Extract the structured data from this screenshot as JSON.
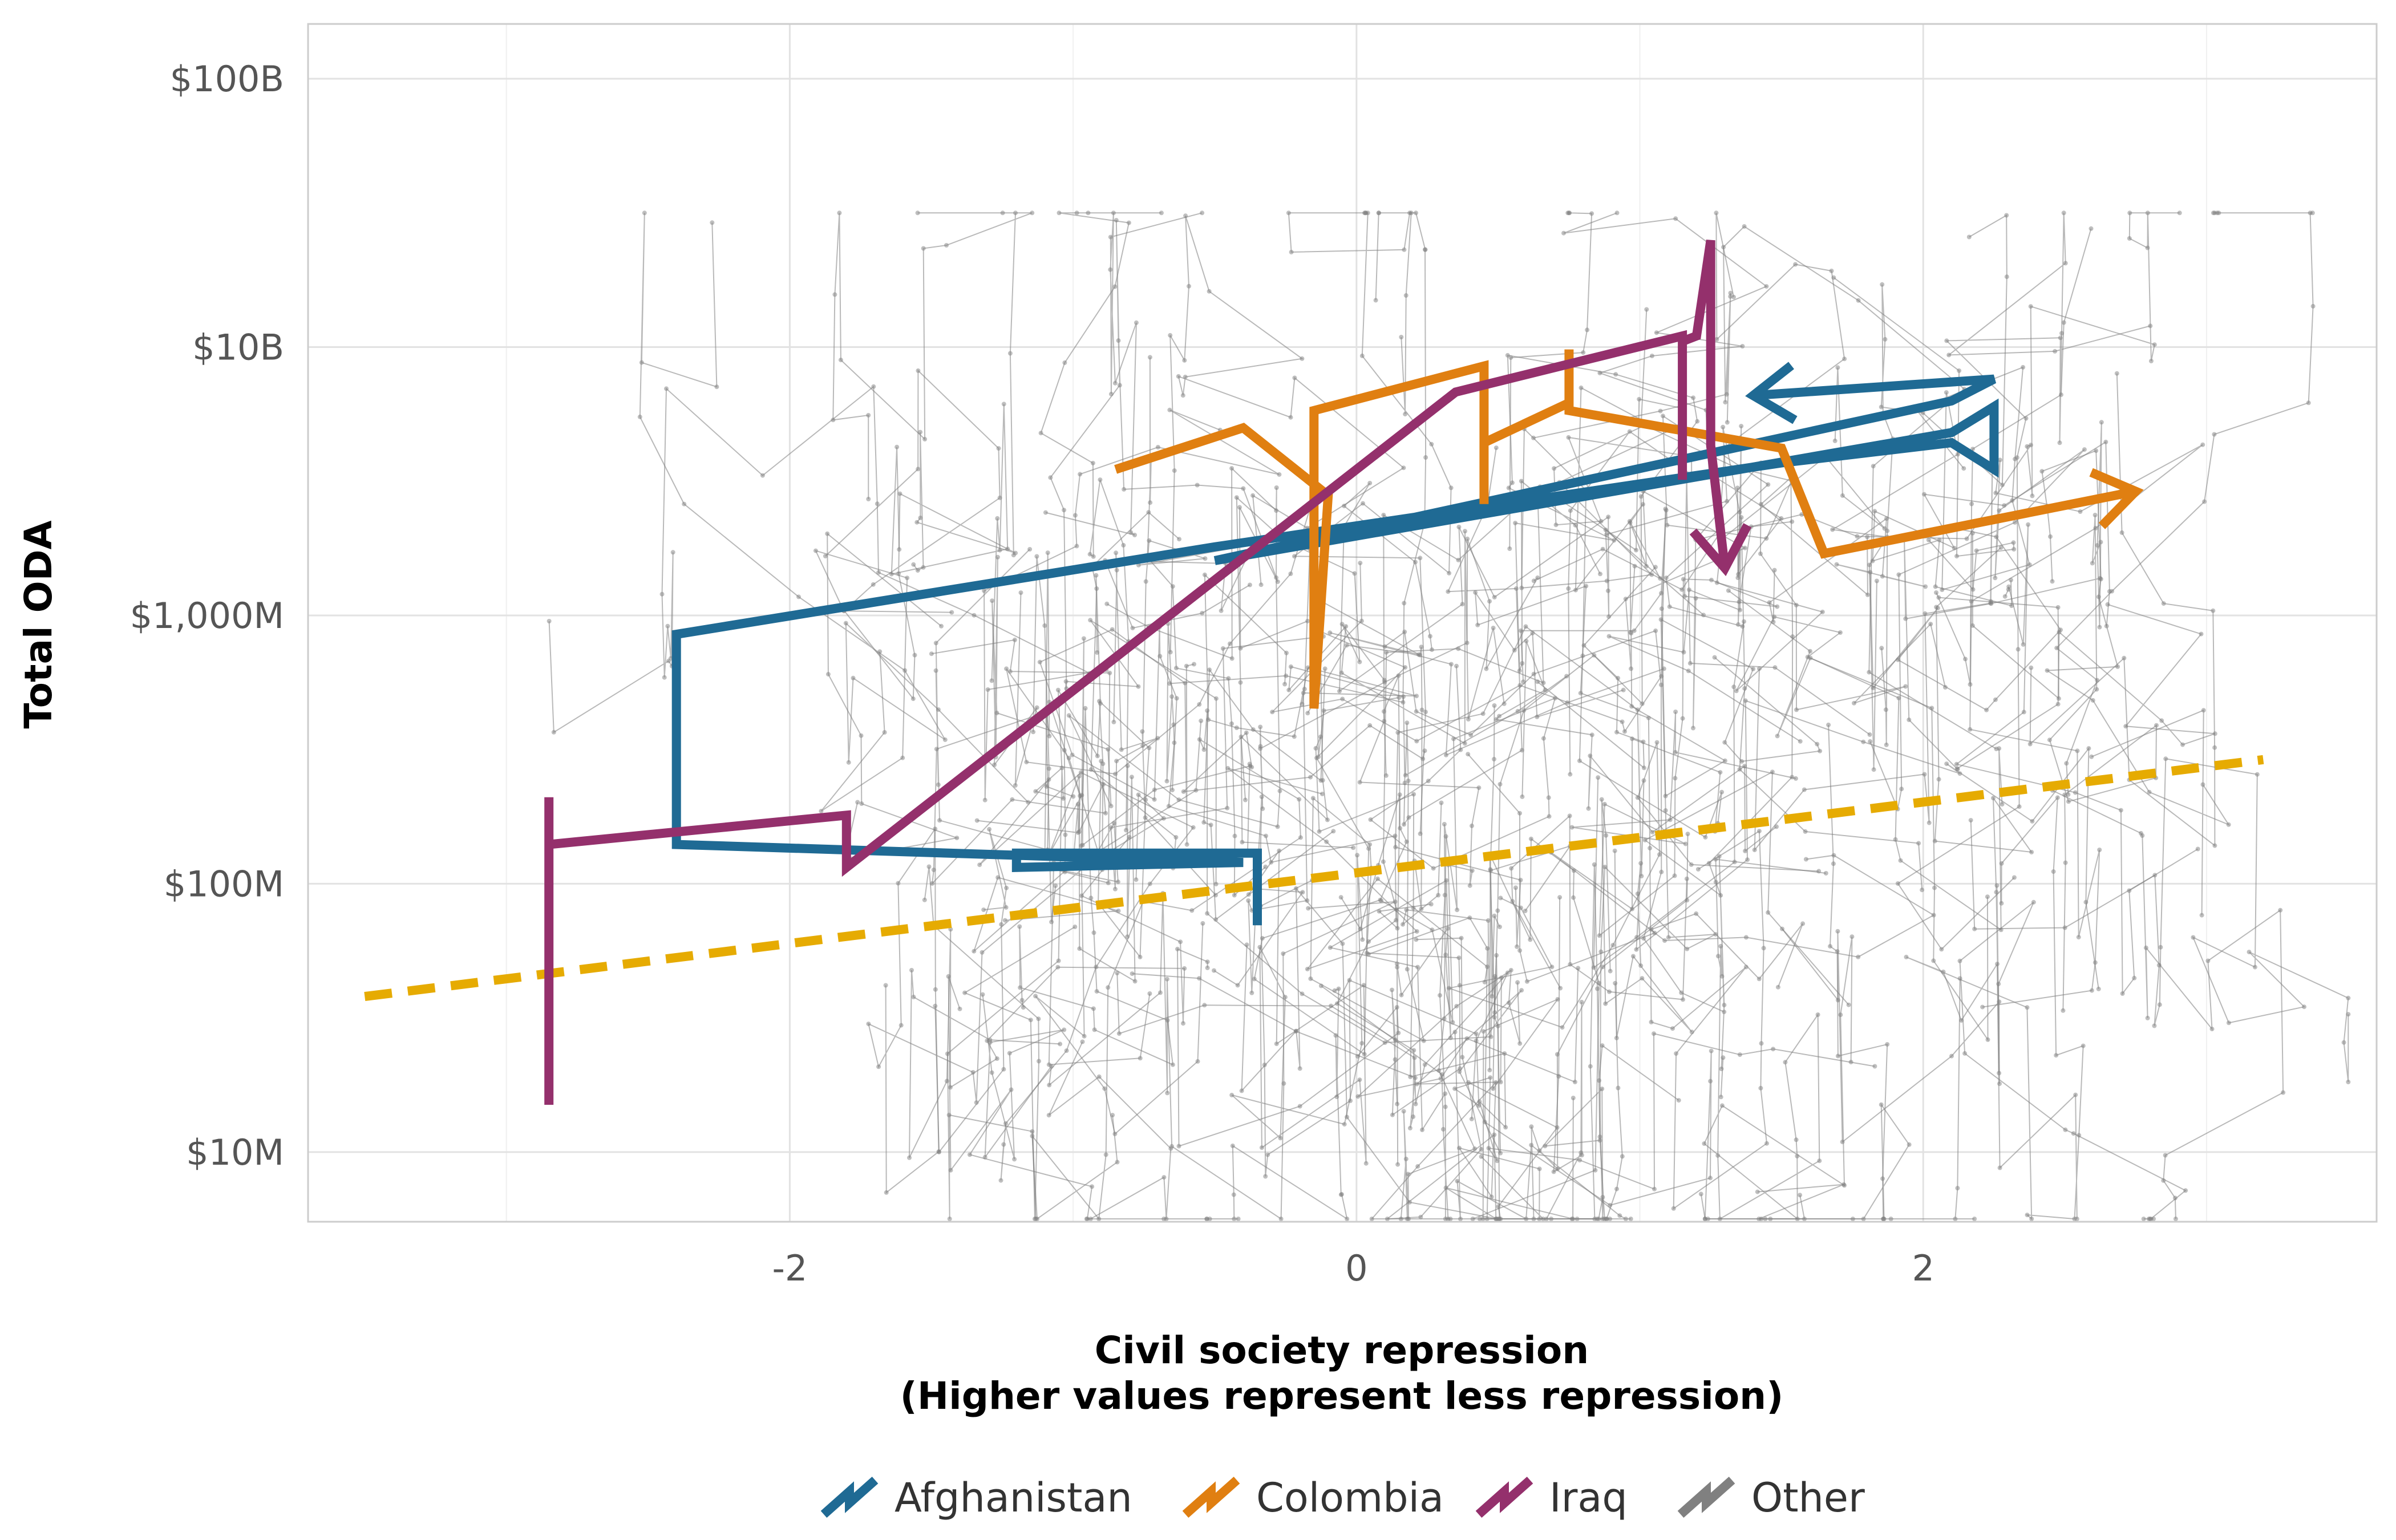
{
  "chart_data": {
    "type": "line",
    "x_axis": {
      "title_line1": "Civil society repression",
      "title_line2": "(Higher values represent less repression)",
      "range": [
        -3.7,
        3.6
      ],
      "ticks": [
        {
          "value": -2,
          "label": "-2"
        },
        {
          "value": 0,
          "label": "0"
        },
        {
          "value": 2,
          "label": "2"
        }
      ],
      "grid": true
    },
    "y_axis": {
      "title": "Total ODA",
      "scale": "log10",
      "range_millions": [
        5.5,
        160000
      ],
      "ticks": [
        {
          "value": 10,
          "label": "$10M"
        },
        {
          "value": 100,
          "label": "$100M"
        },
        {
          "value": 1000,
          "label": "$1,000M"
        },
        {
          "value": 10000,
          "label": "$10B"
        },
        {
          "value": 100000,
          "label": "$100B"
        }
      ],
      "grid": true
    },
    "legend": {
      "position": "bottom",
      "items": [
        {
          "name": "Afghanistan",
          "color": "#1f6a94"
        },
        {
          "name": "Colombia",
          "color": "#e07f11"
        },
        {
          "name": "Iraq",
          "color": "#94306c"
        },
        {
          "name": "Other",
          "color": "#808080"
        }
      ]
    },
    "trend_line": {
      "color": "#e6ab02",
      "style": "dashed",
      "points": [
        [
          -3.5,
          38
        ],
        [
          3.2,
          290
        ]
      ]
    },
    "series": [
      {
        "name": "Afghanistan",
        "color": "#1f6a94",
        "arrow_at_end": true,
        "points": [
          [
            -0.35,
            70
          ],
          [
            -0.35,
            130
          ],
          [
            -1.2,
            130
          ],
          [
            -1.2,
            115
          ],
          [
            -0.4,
            120
          ],
          [
            -2.4,
            140
          ],
          [
            -2.4,
            220
          ],
          [
            -2.4,
            850
          ],
          [
            -0.5,
            1800
          ],
          [
            1.5,
            3700
          ],
          [
            2.1,
            4400
          ],
          [
            2.25,
            3500
          ],
          [
            2.25,
            6000
          ],
          [
            2.1,
            4800
          ],
          [
            -0.5,
            1600
          ],
          [
            2.1,
            6300
          ],
          [
            2.25,
            7600
          ],
          [
            1.4,
            6600
          ]
        ]
      },
      {
        "name": "Colombia",
        "color": "#e07f11",
        "arrow_at_end": true,
        "points": [
          [
            -0.85,
            3500
          ],
          [
            -0.4,
            5000
          ],
          [
            -0.1,
            2800
          ],
          [
            -0.15,
            450
          ],
          [
            -0.15,
            5800
          ],
          [
            0.45,
            8500
          ],
          [
            0.45,
            2600
          ],
          [
            0.45,
            4400
          ],
          [
            0.75,
            6200
          ],
          [
            0.75,
            9800
          ],
          [
            0.75,
            5800
          ],
          [
            1.5,
            4200
          ],
          [
            1.65,
            1700
          ],
          [
            2.75,
            2900
          ]
        ]
      },
      {
        "name": "Iraq",
        "color": "#94306c",
        "arrow_at_end": true,
        "points": [
          [
            -2.85,
            15
          ],
          [
            -2.85,
            210
          ],
          [
            -2.85,
            140
          ],
          [
            -1.8,
            180
          ],
          [
            -1.8,
            115
          ],
          [
            0.35,
            6800
          ],
          [
            1.15,
            11000
          ],
          [
            1.15,
            3200
          ],
          [
            1.15,
            10500
          ],
          [
            1.2,
            11000
          ],
          [
            1.25,
            25000
          ],
          [
            1.25,
            4300
          ],
          [
            1.3,
            1500
          ]
        ]
      }
    ]
  }
}
